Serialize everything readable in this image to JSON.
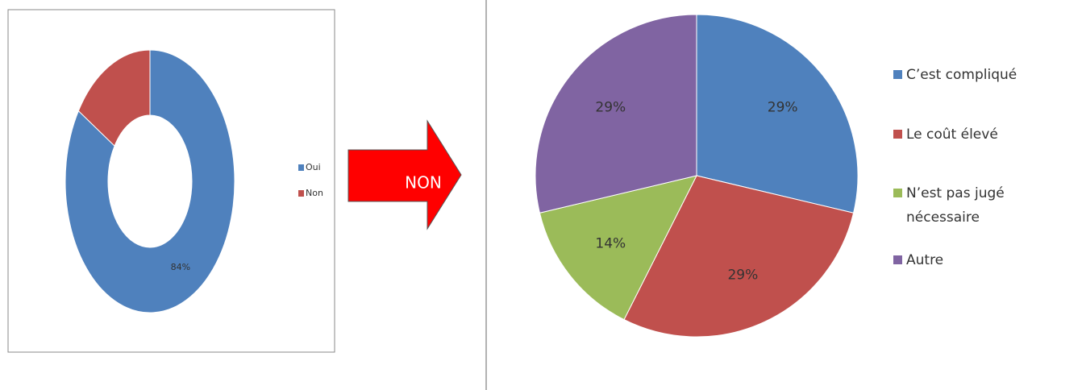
{
  "chart_data": [
    {
      "type": "donut",
      "categories": [
        "Oui",
        "Non"
      ],
      "values": [
        84,
        16
      ],
      "value_labels": [
        "84%",
        null
      ],
      "colors": [
        "#4f81bd",
        "#c0504d"
      ],
      "legend": "right"
    },
    {
      "type": "pie",
      "categories": [
        "C’est compliqué",
        "Le coût élevé",
        "N’est pas jugé nécessaire",
        "Autre"
      ],
      "values": [
        29,
        29,
        14,
        29
      ],
      "value_labels": [
        "29%",
        "29%",
        "14%",
        "29%"
      ],
      "colors": [
        "#4f81bd",
        "#c0504d",
        "#9bbb59",
        "#8064a2"
      ],
      "legend": "right"
    }
  ],
  "arrow": {
    "label": "NON"
  }
}
